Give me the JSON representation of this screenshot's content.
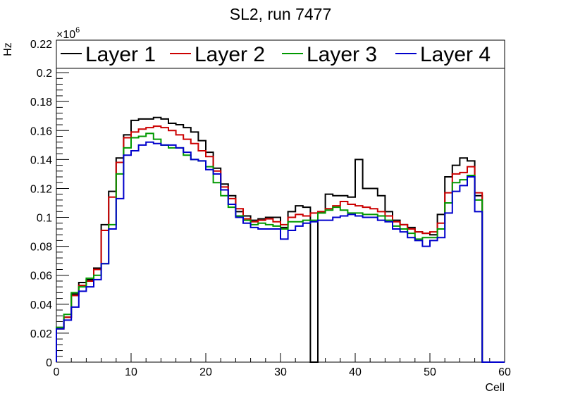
{
  "chart_data": {
    "type": "line",
    "title": "SL2, run 7477",
    "xlabel": "Cell",
    "ylabel": "Hz",
    "y_exponent_label": "×10",
    "y_exponent_power": "6",
    "xlim": [
      0,
      60
    ],
    "ylim": [
      0,
      0.22
    ],
    "x_ticks": [
      0,
      10,
      20,
      30,
      40,
      50,
      60
    ],
    "x_tick_labels": [
      "0",
      "10",
      "20",
      "30",
      "40",
      "50",
      "60"
    ],
    "y_ticks": [
      0,
      0.02,
      0.04,
      0.06,
      0.08,
      0.1,
      0.12,
      0.14,
      0.16,
      0.18,
      0.2,
      0.22
    ],
    "y_tick_labels": [
      "0",
      "0.02",
      "0.04",
      "0.06",
      "0.08",
      "0.1",
      "0.12",
      "0.14",
      "0.16",
      "0.18",
      "0.2",
      "0.22"
    ],
    "grid": false,
    "legend_position": "top",
    "series": [
      {
        "name": "Layer 1",
        "color": "#000000",
        "values": [
          0.024,
          0.031,
          0.047,
          0.055,
          0.057,
          0.065,
          0.095,
          0.118,
          0.141,
          0.157,
          0.167,
          0.168,
          0.168,
          0.169,
          0.168,
          0.165,
          0.164,
          0.162,
          0.159,
          0.153,
          0.145,
          0.134,
          0.123,
          0.115,
          0.104,
          0.101,
          0.098,
          0.099,
          0.1,
          0.1,
          0.093,
          0.104,
          0.108,
          0.107,
          0.0,
          0.104,
          0.116,
          0.115,
          0.115,
          0.114,
          0.14,
          0.12,
          0.12,
          0.115,
          0.104,
          0.098,
          0.095,
          0.093,
          0.09,
          0.089,
          0.088,
          0.102,
          0.128,
          0.136,
          0.141,
          0.139,
          0.115,
          0.0,
          0.0,
          0.0
        ]
      },
      {
        "name": "Layer 2",
        "color": "#cc0000",
        "values": [
          0.023,
          0.031,
          0.046,
          0.053,
          0.056,
          0.064,
          0.091,
          0.114,
          0.138,
          0.155,
          0.159,
          0.161,
          0.162,
          0.163,
          0.162,
          0.16,
          0.157,
          0.154,
          0.151,
          0.146,
          0.142,
          0.132,
          0.121,
          0.113,
          0.106,
          0.099,
          0.097,
          0.098,
          0.099,
          0.097,
          0.095,
          0.1,
          0.102,
          0.101,
          0.103,
          0.104,
          0.106,
          0.108,
          0.111,
          0.109,
          0.108,
          0.107,
          0.106,
          0.104,
          0.101,
          0.097,
          0.095,
          0.092,
          0.09,
          0.089,
          0.09,
          0.096,
          0.117,
          0.13,
          0.131,
          0.135,
          0.117,
          0.0,
          0.0,
          0.0
        ]
      },
      {
        "name": "Layer 3",
        "color": "#009900",
        "values": [
          0.024,
          0.033,
          0.048,
          0.052,
          0.058,
          0.06,
          0.068,
          0.095,
          0.13,
          0.148,
          0.155,
          0.156,
          0.158,
          0.154,
          0.15,
          0.148,
          0.148,
          0.143,
          0.14,
          0.139,
          0.135,
          0.124,
          0.115,
          0.107,
          0.101,
          0.098,
          0.095,
          0.096,
          0.095,
          0.094,
          0.092,
          0.097,
          0.097,
          0.098,
          0.098,
          0.103,
          0.105,
          0.107,
          0.105,
          0.103,
          0.103,
          0.102,
          0.102,
          0.101,
          0.098,
          0.094,
          0.092,
          0.089,
          0.085,
          0.086,
          0.086,
          0.092,
          0.11,
          0.124,
          0.126,
          0.129,
          0.112,
          0.0,
          0.0,
          0.0
        ]
      },
      {
        "name": "Layer 4",
        "color": "#0000cc",
        "values": [
          0.023,
          0.029,
          0.038,
          0.049,
          0.052,
          0.057,
          0.068,
          0.092,
          0.113,
          0.143,
          0.146,
          0.15,
          0.152,
          0.151,
          0.15,
          0.15,
          0.148,
          0.145,
          0.14,
          0.139,
          0.133,
          0.13,
          0.119,
          0.109,
          0.1,
          0.096,
          0.093,
          0.092,
          0.092,
          0.092,
          0.085,
          0.091,
          0.094,
          0.096,
          0.097,
          0.098,
          0.098,
          0.1,
          0.101,
          0.102,
          0.101,
          0.1,
          0.1,
          0.098,
          0.097,
          0.092,
          0.09,
          0.086,
          0.084,
          0.08,
          0.084,
          0.086,
          0.103,
          0.118,
          0.122,
          0.128,
          0.104,
          0.0,
          0.0,
          0.0
        ]
      }
    ]
  }
}
